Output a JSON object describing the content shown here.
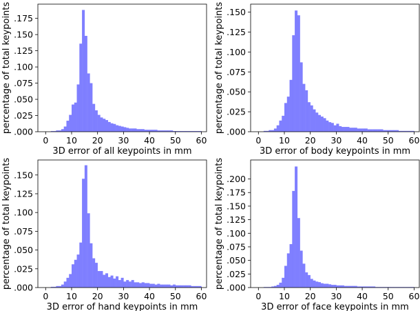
{
  "chart_data": [
    {
      "type": "bar",
      "xlabel": "3D error of all keypoints in mm",
      "ylabel": "percentage of total keypoints",
      "xlim": [
        -3,
        62
      ],
      "ylim": [
        0,
        0.197
      ],
      "xticks": [
        0,
        10,
        20,
        30,
        40,
        50,
        60
      ],
      "yticks": [
        0,
        0.025,
        0.05,
        0.075,
        0.1,
        0.125,
        0.15,
        0.175
      ],
      "ytick_labels": [
        ".000",
        ".025",
        ".050",
        ".075",
        ".100",
        ".125",
        ".150",
        ".175"
      ],
      "bin_start": 0,
      "bin_width": 1,
      "values": [
        0,
        0,
        0.001,
        0.001,
        0.002,
        0.002,
        0.004,
        0.008,
        0.017,
        0.026,
        0.042,
        0.045,
        0.073,
        0.136,
        0.188,
        0.148,
        0.09,
        0.075,
        0.043,
        0.033,
        0.026,
        0.022,
        0.02,
        0.018,
        0.015,
        0.013,
        0.012,
        0.01,
        0.009,
        0.008,
        0.007,
        0.006,
        0.005,
        0.005,
        0.005,
        0.004,
        0.004,
        0.004,
        0.003,
        0.003,
        0.003,
        0.003,
        0.003,
        0.002,
        0.002,
        0.002,
        0.002,
        0.002,
        0.002,
        0.001,
        0.001,
        0.001,
        0.001,
        0.001,
        0.001,
        0.001,
        0.001,
        0.001,
        0.001,
        0.001
      ]
    },
    {
      "type": "bar",
      "xlabel": "3D error of body keypoints in mm",
      "ylabel": "percentage of total keypoints",
      "xlim": [
        -3,
        62
      ],
      "ylim": [
        0,
        0.16
      ],
      "xticks": [
        0,
        10,
        20,
        30,
        40,
        50,
        60
      ],
      "yticks": [
        0,
        0.025,
        0.05,
        0.075,
        0.1,
        0.125,
        0.15
      ],
      "ytick_labels": [
        ".000",
        ".025",
        ".050",
        ".075",
        ".100",
        ".125",
        ".150"
      ],
      "bin_start": 0,
      "bin_width": 1,
      "values": [
        0,
        0,
        0.001,
        0.001,
        0.002,
        0.002,
        0.004,
        0.008,
        0.014,
        0.02,
        0.036,
        0.044,
        0.065,
        0.121,
        0.152,
        0.146,
        0.087,
        0.06,
        0.052,
        0.037,
        0.033,
        0.028,
        0.024,
        0.021,
        0.019,
        0.017,
        0.014,
        0.012,
        0.011,
        0.008,
        0.01,
        0.007,
        0.006,
        0.006,
        0.006,
        0.005,
        0.005,
        0.005,
        0.004,
        0.004,
        0.004,
        0.004,
        0.003,
        0.003,
        0.003,
        0.003,
        0.003,
        0.003,
        0.002,
        0.002,
        0.002,
        0.002,
        0.002,
        0.002,
        0.001,
        0.001,
        0.001,
        0.001,
        0.001,
        0.001
      ]
    },
    {
      "type": "bar",
      "xlabel": "3D error of hand keypoints in mm",
      "ylabel": "percentage of total keypoints",
      "xlim": [
        -3,
        62
      ],
      "ylim": [
        0,
        0.17
      ],
      "xticks": [
        0,
        10,
        20,
        30,
        40,
        50,
        60
      ],
      "yticks": [
        0,
        0.025,
        0.05,
        0.075,
        0.1,
        0.125,
        0.15
      ],
      "ytick_labels": [
        ".000",
        ".025",
        ".050",
        ".075",
        ".100",
        ".125",
        ".150"
      ],
      "bin_start": 0,
      "bin_width": 1,
      "values": [
        0,
        0,
        0.001,
        0.001,
        0.002,
        0.002,
        0.004,
        0.008,
        0.013,
        0.018,
        0.031,
        0.037,
        0.044,
        0.06,
        0.145,
        0.163,
        0.099,
        0.059,
        0.039,
        0.033,
        0.022,
        0.022,
        0.017,
        0.019,
        0.014,
        0.016,
        0.012,
        0.015,
        0.01,
        0.013,
        0.008,
        0.01,
        0.008,
        0.01,
        0.007,
        0.007,
        0.006,
        0.007,
        0.006,
        0.006,
        0.005,
        0.005,
        0.004,
        0.005,
        0.004,
        0.004,
        0.004,
        0.004,
        0.003,
        0.004,
        0.003,
        0.003,
        0.003,
        0.003,
        0.003,
        0.003,
        0.002,
        0.002,
        0.002,
        0.002
      ]
    },
    {
      "type": "bar",
      "xlabel": "3D error of face keypoints in mm",
      "ylabel": "percentage of total keypoints",
      "xlim": [
        -3,
        62
      ],
      "ylim": [
        0,
        0.235
      ],
      "xticks": [
        0,
        10,
        20,
        30,
        40,
        50,
        60
      ],
      "yticks": [
        0,
        0.025,
        0.05,
        0.075,
        0.1,
        0.125,
        0.15,
        0.175,
        0.2
      ],
      "ytick_labels": [
        ".000",
        ".025",
        ".050",
        ".075",
        ".100",
        ".125",
        ".150",
        ".175",
        ".200"
      ],
      "bin_start": 0,
      "bin_width": 1,
      "values": [
        0,
        0,
        0.001,
        0.001,
        0.001,
        0.002,
        0.003,
        0.005,
        0.009,
        0.018,
        0.04,
        0.063,
        0.08,
        0.178,
        0.223,
        0.128,
        0.068,
        0.044,
        0.028,
        0.023,
        0.016,
        0.013,
        0.011,
        0.01,
        0.008,
        0.007,
        0.007,
        0.006,
        0.005,
        0.005,
        0.004,
        0.004,
        0.004,
        0.003,
        0.003,
        0.003,
        0.003,
        0.003,
        0.002,
        0.002,
        0.002,
        0.002,
        0.002,
        0.002,
        0.002,
        0.001,
        0.001,
        0.001,
        0.001,
        0.001,
        0.001,
        0.001,
        0.001,
        0.001,
        0.001,
        0.001,
        0.001,
        0.001,
        0.001,
        0.001
      ]
    }
  ],
  "colors": {
    "bar_fill": "#7f7fff",
    "axes": "#000000"
  }
}
